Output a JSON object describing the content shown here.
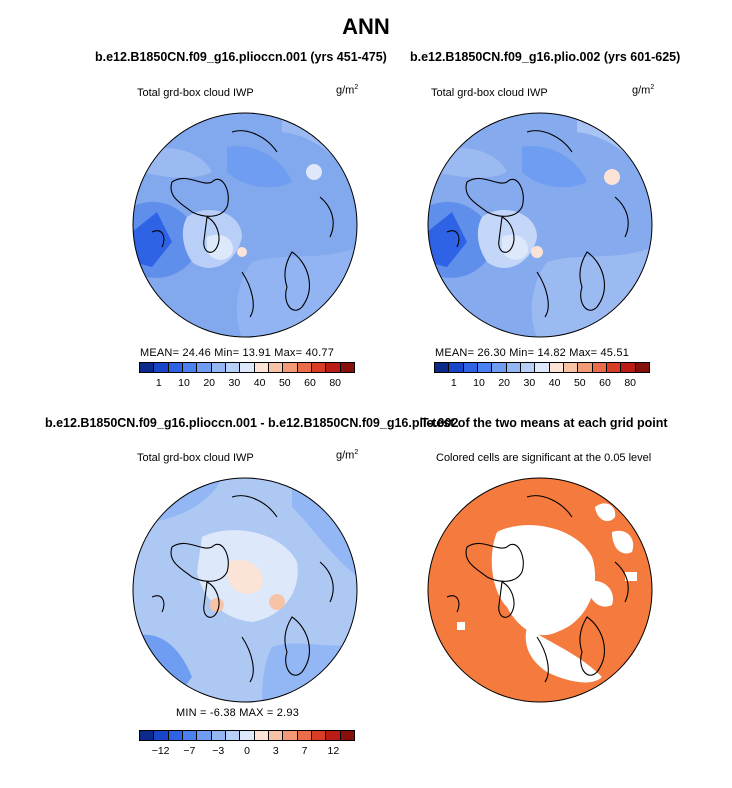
{
  "title": "ANN",
  "panels": [
    {
      "id": "p1",
      "header": "b.e12.B1850CN.f09_g16.plioccn.001 (yrs 451-475)",
      "variable": "Total grd-box cloud IWP",
      "units_base": "g/m",
      "units_exp": "2",
      "stats_text": "MEAN=  24.46   Min=  13.91   Max=  40.77"
    },
    {
      "id": "p2",
      "header": "b.e12.B1850CN.f09_g16.plio.002 (yrs 601-625)",
      "variable": "Total grd-box cloud IWP",
      "units_base": "g/m",
      "units_exp": "2",
      "stats_text": "MEAN=  26.30   Min=  14.82   Max=  45.51"
    },
    {
      "id": "p3",
      "header": "b.e12.B1850CN.f09_g16.plioccn.001 - b.e12.B1850CN.f09_g16.plio.002",
      "variable": "Total grd-box cloud IWP",
      "units_base": "g/m",
      "units_exp": "2",
      "stats_text": "MIN =   -6.38  MAX =    2.93"
    },
    {
      "id": "p4",
      "header": "T-test of the two means at each grid point",
      "variable": "Colored cells are significant at the 0.05 level"
    }
  ],
  "chart_data": [
    {
      "type": "heatmap",
      "projection": "north-polar-stereographic",
      "title": "b.e12.B1850CN.f09_g16.plioccn.001 (yrs 451-475)",
      "variable": "Total grd-box cloud IWP",
      "units": "g/m^2",
      "mean": 24.46,
      "min": 13.91,
      "max": 40.77,
      "colorbar_levels": [
        1,
        5,
        10,
        15,
        20,
        25,
        30,
        35,
        40,
        45,
        50,
        55,
        60,
        70,
        80
      ],
      "colorbar_tick_labels": [
        "1",
        "10",
        "20",
        "30",
        "40",
        "50",
        "60",
        "80"
      ]
    },
    {
      "type": "heatmap",
      "projection": "north-polar-stereographic",
      "title": "b.e12.B1850CN.f09_g16.plio.002 (yrs 601-625)",
      "variable": "Total grd-box cloud IWP",
      "units": "g/m^2",
      "mean": 26.3,
      "min": 14.82,
      "max": 45.51,
      "colorbar_levels": [
        1,
        5,
        10,
        15,
        20,
        25,
        30,
        35,
        40,
        45,
        50,
        55,
        60,
        70,
        80
      ],
      "colorbar_tick_labels": [
        "1",
        "10",
        "20",
        "30",
        "40",
        "50",
        "60",
        "80"
      ]
    },
    {
      "type": "heatmap",
      "projection": "north-polar-stereographic",
      "title": "b.e12.B1850CN.f09_g16.plioccn.001 - b.e12.B1850CN.f09_g16.plio.002",
      "variable": "Total grd-box cloud IWP",
      "units": "g/m^2",
      "min": -6.38,
      "max": 2.93,
      "colorbar_levels": [
        -15,
        -12,
        -9,
        -7,
        -5,
        -3,
        -1,
        0,
        1,
        3,
        5,
        7,
        9,
        12,
        15
      ],
      "colorbar_tick_labels": [
        "-12",
        "-7",
        "-3",
        "0",
        "3",
        "7",
        "12"
      ]
    },
    {
      "type": "heatmap",
      "projection": "north-polar-stereographic",
      "title": "T-test of the two means at each grid point",
      "subtitle": "Colored cells are significant at the 0.05 level",
      "significance_level": 0.05
    }
  ],
  "colors": {
    "abs_scale": [
      "#0b2a8a",
      "#1746c9",
      "#2f63e6",
      "#4a80f0",
      "#6f9df2",
      "#93b6f5",
      "#b9cff8",
      "#dde8fb",
      "#fbe3d6",
      "#f7c3a6",
      "#f29a76",
      "#ea6c4b",
      "#d93d26",
      "#b81c13",
      "#85100c"
    ],
    "diff_scale": [
      "#0b2a8a",
      "#1746c9",
      "#2f63e6",
      "#4a80f0",
      "#6f9df2",
      "#93b6f5",
      "#b9cff8",
      "#dde8fb",
      "#fbe3d6",
      "#f7c3a6",
      "#f29a76",
      "#ea6c4b",
      "#d93d26",
      "#b81c13",
      "#85100c"
    ],
    "significant": "#f57a3d",
    "ocean_base_p1": "#82a8ee",
    "ocean_base_p2": "#86aaee",
    "ocean_base_p3": "#aec8f4"
  }
}
